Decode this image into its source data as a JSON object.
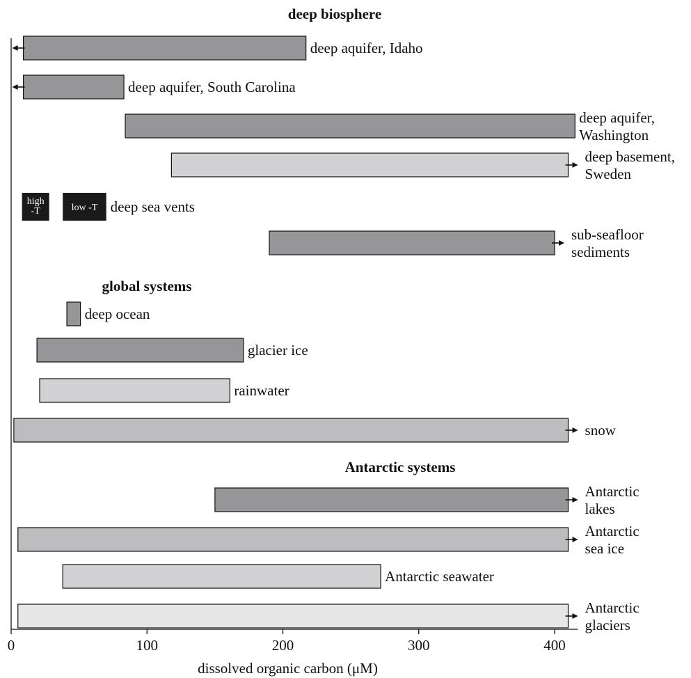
{
  "chart_data": {
    "type": "bar",
    "orientation": "horizontal",
    "xlabel": "dissolved organic carbon (μM)",
    "xlim": [
      0,
      415
    ],
    "xticks": [
      "0",
      "100",
      "200",
      "300",
      "400"
    ],
    "grid": false,
    "legend": "none",
    "colors": {
      "dark": "#969698",
      "medium": "#bdbdbf",
      "light": "#d2d2d4",
      "lightest": "#e6e6e7",
      "black": "#1a1a1a"
    },
    "sections": [
      {
        "title": "deep biosphere",
        "after_row": -1
      },
      {
        "title": "global systems",
        "after_row": 5
      },
      {
        "title": "Antarctic systems",
        "after_row": 10
      }
    ],
    "bars": [
      {
        "label": [
          "deep aquifer, Idaho"
        ],
        "x_start": 9,
        "x_end": 217,
        "shade": "dark",
        "arrow_low": true,
        "arrow_high": false
      },
      {
        "label": [
          "deep aquifer, South Carolina"
        ],
        "x_start": 9,
        "x_end": 83,
        "shade": "dark",
        "arrow_low": true,
        "arrow_high": false
      },
      {
        "label": [
          "deep aquifer,",
          "Washington"
        ],
        "x_start": 84,
        "x_end": 415,
        "shade": "dark",
        "arrow_low": false,
        "arrow_high": false
      },
      {
        "label": [
          "deep basement,",
          "Sweden"
        ],
        "x_start": 118,
        "x_end": 410,
        "shade": "light",
        "arrow_low": false,
        "arrow_high": true
      },
      {
        "label": [
          "deep sea vents"
        ],
        "vents": [
          {
            "text": [
              "high",
              "-T"
            ],
            "x_start": 8,
            "x_end": 28
          },
          {
            "text": [
              "low -T"
            ],
            "x_start": 38,
            "x_end": 70
          }
        ],
        "shade": "black"
      },
      {
        "label": [
          "sub-seafloor",
          "sediments"
        ],
        "x_start": 190,
        "x_end": 400,
        "shade": "dark",
        "arrow_low": false,
        "arrow_high": true
      },
      {
        "label": [
          "deep ocean"
        ],
        "x_start": 41,
        "x_end": 51,
        "shade": "dark",
        "arrow_low": false,
        "arrow_high": false
      },
      {
        "label": [
          "glacier ice"
        ],
        "x_start": 19,
        "x_end": 171,
        "shade": "dark",
        "arrow_low": false,
        "arrow_high": false
      },
      {
        "label": [
          "rainwater"
        ],
        "x_start": 21,
        "x_end": 161,
        "shade": "light",
        "arrow_low": false,
        "arrow_high": false
      },
      {
        "label": [
          "snow"
        ],
        "x_start": 2,
        "x_end": 410,
        "shade": "medium",
        "arrow_low": false,
        "arrow_high": true
      },
      {
        "label": [
          "Antarctic",
          "lakes"
        ],
        "x_start": 150,
        "x_end": 410,
        "shade": "dark",
        "arrow_low": false,
        "arrow_high": true
      },
      {
        "label": [
          "Antarctic",
          "sea ice"
        ],
        "x_start": 5,
        "x_end": 410,
        "shade": "medium",
        "arrow_low": false,
        "arrow_high": true
      },
      {
        "label": [
          "Antarctic seawater"
        ],
        "x_start": 38,
        "x_end": 272,
        "shade": "light",
        "arrow_low": false,
        "arrow_high": false
      },
      {
        "label": [
          "Antarctic",
          "glaciers"
        ],
        "x_start": 5,
        "x_end": 410,
        "shade": "lightest",
        "arrow_low": false,
        "arrow_high": true
      }
    ]
  }
}
